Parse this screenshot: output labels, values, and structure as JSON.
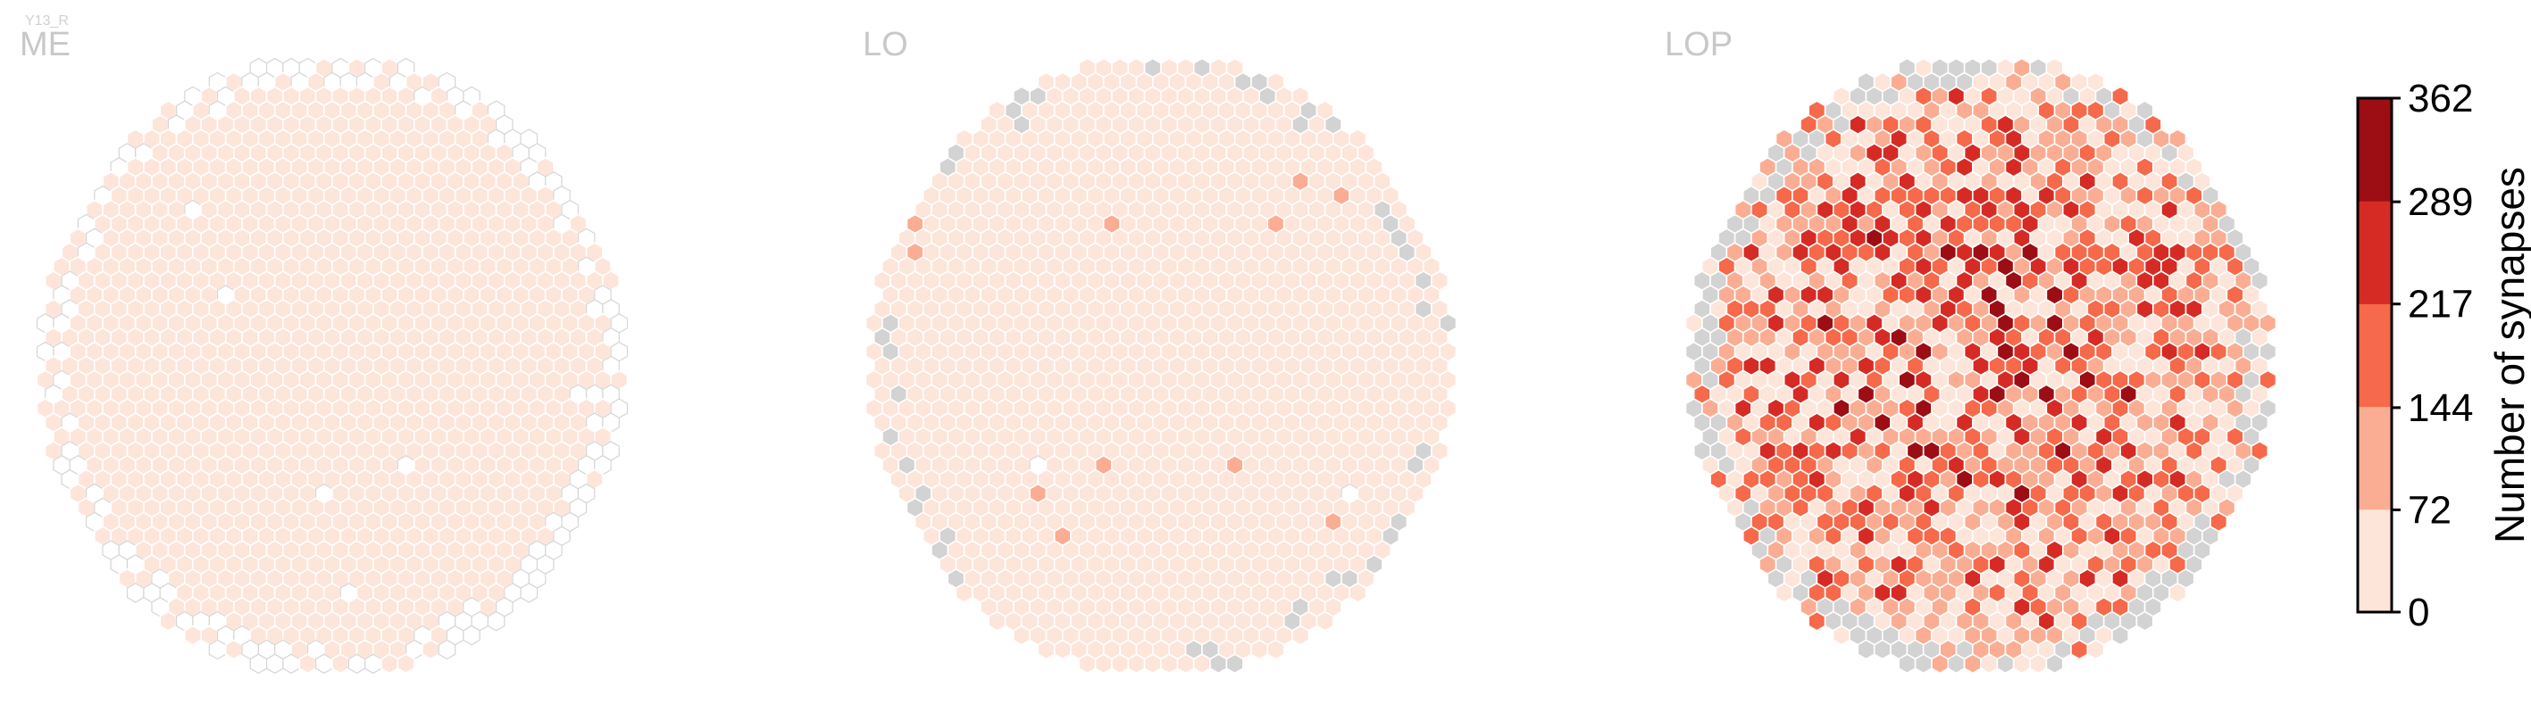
{
  "chart_data": {
    "type": "heatmap",
    "cell_type": "Y13_R",
    "panels": [
      {
        "name": "ME",
        "empty_fraction": 0.08,
        "value_min": 10,
        "value_max": 30
      },
      {
        "name": "LO",
        "empty_fraction": 0.01,
        "gray_fraction": 0.03,
        "value_min": 5,
        "value_max": 25
      },
      {
        "name": "LOP",
        "gray_fraction": 0.08,
        "value_min": 20,
        "value_max": 362
      }
    ],
    "colorbar": {
      "label": "Number of synapses",
      "ticks": [
        "0",
        "72",
        "144",
        "217",
        "289",
        "362"
      ],
      "tick_values": [
        0,
        72,
        144,
        217,
        289,
        362
      ],
      "range": [
        0,
        362
      ],
      "bins": 5,
      "colors": [
        "#fde5da",
        "#fbad93",
        "#f6694a",
        "#d62b25",
        "#9c0d14"
      ]
    },
    "colors": {
      "empty_cell_stroke": "#d6d6d6",
      "no_data_cell": "#d3d3d3",
      "cell_border": "#ffffff"
    }
  }
}
